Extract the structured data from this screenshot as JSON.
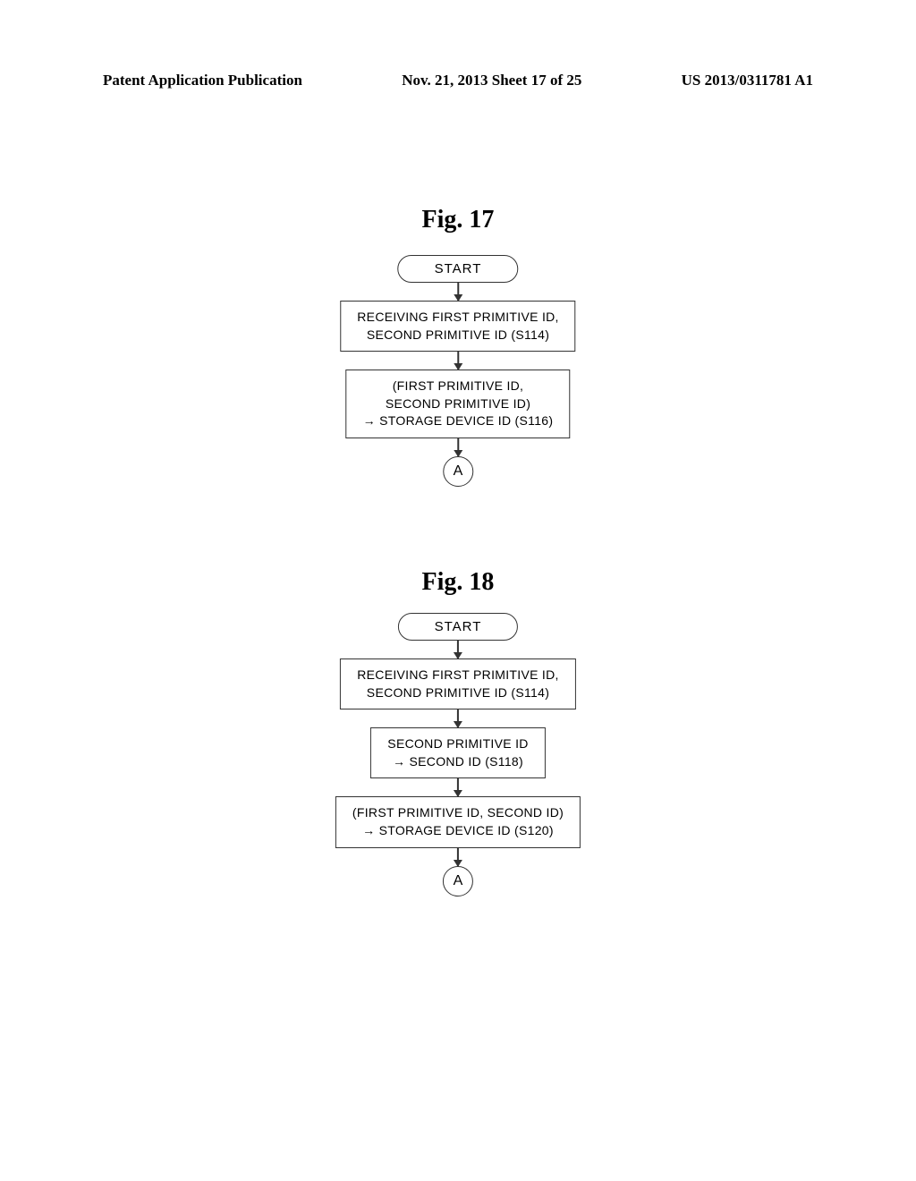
{
  "header": {
    "left": "Patent Application Publication",
    "center": "Nov. 21, 2013  Sheet 17 of 25",
    "right": "US 2013/0311781 A1"
  },
  "fig17": {
    "title": "Fig. 17",
    "start": "START",
    "step1_line1": "RECEIVING FIRST PRIMITIVE ID,",
    "step1_line2": "SECOND PRIMITIVE ID (S114)",
    "step2_line1": "(FIRST PRIMITIVE ID,",
    "step2_line2": "SECOND PRIMITIVE ID)",
    "step2_line3": "→ STORAGE DEVICE ID (S116)",
    "connector": "A"
  },
  "fig18": {
    "title": "Fig. 18",
    "start": "START",
    "step1_line1": "RECEIVING FIRST PRIMITIVE ID,",
    "step1_line2": "SECOND PRIMITIVE ID (S114)",
    "step2_line1": "SECOND PRIMITIVE ID",
    "step2_line2": "→ SECOND ID (S118)",
    "step3_line1": "(FIRST PRIMITIVE ID, SECOND ID)",
    "step3_line2": "→ STORAGE DEVICE ID (S120)",
    "connector": "A"
  },
  "colors": {
    "background": "#ffffff",
    "line": "#333333",
    "text": "#000000"
  }
}
